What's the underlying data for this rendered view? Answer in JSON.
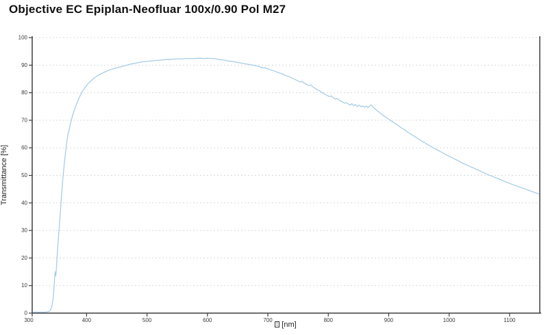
{
  "page": {
    "title": "Objective EC Epiplan-Neofluar 100x/0.90 Pol M27"
  },
  "colors": {
    "background": "#ffffff",
    "axis": "#3d3d3d",
    "grid": "#d9d9d9",
    "tick_label": "#3a3a3a",
    "curve": "#a6cde8",
    "title_text": "#111111"
  },
  "chart_data": {
    "type": "line",
    "title": "Objective EC Epiplan-Neofluar 100x/0.90 Pol M27",
    "ylabel": "Transmittance [%]",
    "xlabel": {
      "glyph": "missing-glyph-box",
      "unit": "[nm]"
    },
    "xlim": [
      310,
      1150
    ],
    "ylim": [
      0,
      100
    ],
    "x_ticks": [
      300,
      400,
      500,
      600,
      700,
      800,
      900,
      1000,
      1100
    ],
    "y_ticks": [
      0,
      10,
      20,
      30,
      40,
      50,
      60,
      70,
      80,
      90,
      100
    ],
    "grid": "horizontal-dashed",
    "legend": "none",
    "series": [
      {
        "name": "Transmittance",
        "color": "#a6cde8",
        "points": [
          [
            312,
            0.3
          ],
          [
            316,
            0.4
          ],
          [
            320,
            0.3
          ],
          [
            324,
            0.4
          ],
          [
            328,
            0.3
          ],
          [
            332,
            0.4
          ],
          [
            336,
            0.5
          ],
          [
            339,
            0.8
          ],
          [
            341,
            1.5
          ],
          [
            343,
            3
          ],
          [
            345,
            6
          ],
          [
            346,
            9
          ],
          [
            347,
            12
          ],
          [
            348,
            15
          ],
          [
            349,
            13.5
          ],
          [
            350,
            16
          ],
          [
            351,
            20
          ],
          [
            353,
            26
          ],
          [
            355,
            32
          ],
          [
            357,
            38
          ],
          [
            359,
            44
          ],
          [
            361,
            49.5
          ],
          [
            363,
            54
          ],
          [
            365,
            58
          ],
          [
            367,
            61.5
          ],
          [
            369,
            64.5
          ],
          [
            371,
            66.5
          ],
          [
            373,
            68.5
          ],
          [
            375,
            70.2
          ],
          [
            377,
            71.8
          ],
          [
            379,
            73.2
          ],
          [
            381,
            74.5
          ],
          [
            384,
            76.2
          ],
          [
            387,
            77.8
          ],
          [
            390,
            79.2
          ],
          [
            393,
            80.4
          ],
          [
            396,
            81.4
          ],
          [
            399,
            82.3
          ],
          [
            403,
            83.4
          ],
          [
            407,
            84.3
          ],
          [
            411,
            85
          ],
          [
            415,
            85.7
          ],
          [
            420,
            86.4
          ],
          [
            425,
            87
          ],
          [
            430,
            87.5
          ],
          [
            435,
            88
          ],
          [
            440,
            88.4
          ],
          [
            445,
            88.7
          ],
          [
            450,
            89
          ],
          [
            455,
            89.3
          ],
          [
            460,
            89.6
          ],
          [
            465,
            89.9
          ],
          [
            470,
            90.2
          ],
          [
            475,
            90.5
          ],
          [
            480,
            90.7
          ],
          [
            485,
            90.9
          ],
          [
            490,
            91.1
          ],
          [
            495,
            91.3
          ],
          [
            500,
            91.4
          ],
          [
            505,
            91.5
          ],
          [
            510,
            91.6
          ],
          [
            515,
            91.7
          ],
          [
            520,
            91.8
          ],
          [
            525,
            91.9
          ],
          [
            530,
            92
          ],
          [
            535,
            92.1
          ],
          [
            540,
            92.1
          ],
          [
            545,
            92.2
          ],
          [
            550,
            92.2
          ],
          [
            555,
            92.3
          ],
          [
            560,
            92.3
          ],
          [
            565,
            92.4
          ],
          [
            570,
            92.4
          ],
          [
            575,
            92.4
          ],
          [
            580,
            92.4
          ],
          [
            585,
            92.5
          ],
          [
            590,
            92.5
          ],
          [
            595,
            92.4
          ],
          [
            600,
            92.5
          ],
          [
            605,
            92.4
          ],
          [
            610,
            92.4
          ],
          [
            614,
            92.3
          ],
          [
            617,
            92.1
          ],
          [
            620,
            92
          ],
          [
            625,
            91.9
          ],
          [
            630,
            91.7
          ],
          [
            635,
            91.5
          ],
          [
            640,
            91.4
          ],
          [
            645,
            91.2
          ],
          [
            650,
            91
          ],
          [
            655,
            90.8
          ],
          [
            660,
            90.6
          ],
          [
            665,
            90.4
          ],
          [
            670,
            90.2
          ],
          [
            675,
            90
          ],
          [
            680,
            89.8
          ],
          [
            684,
            89.6
          ],
          [
            687,
            89.4
          ],
          [
            689,
            89
          ],
          [
            691,
            89.3
          ],
          [
            693,
            88.9
          ],
          [
            695,
            89.1
          ],
          [
            698,
            88.8
          ],
          [
            701,
            88.6
          ],
          [
            705,
            88.3
          ],
          [
            710,
            87.9
          ],
          [
            715,
            87.5
          ],
          [
            720,
            87.1
          ],
          [
            725,
            86.7
          ],
          [
            730,
            86.2
          ],
          [
            735,
            85.8
          ],
          [
            740,
            85.3
          ],
          [
            745,
            84.8
          ],
          [
            750,
            84.3
          ],
          [
            754,
            83.9
          ],
          [
            757,
            84.1
          ],
          [
            760,
            83.5
          ],
          [
            764,
            83
          ],
          [
            768,
            82.6
          ],
          [
            771,
            82.8
          ],
          [
            774,
            82.2
          ],
          [
            778,
            81.6
          ],
          [
            782,
            81.1
          ],
          [
            786,
            80.6
          ],
          [
            790,
            80
          ],
          [
            794,
            79.5
          ],
          [
            798,
            79
          ],
          [
            802,
            78.6
          ],
          [
            805,
            78.8
          ],
          [
            808,
            78.2
          ],
          [
            812,
            77.7
          ],
          [
            815,
            77.9
          ],
          [
            818,
            77.3
          ],
          [
            821,
            76.9
          ],
          [
            824,
            76.6
          ],
          [
            827,
            76.2
          ],
          [
            830,
            76.4
          ],
          [
            833,
            75.9
          ],
          [
            836,
            75.5
          ],
          [
            839,
            76
          ],
          [
            842,
            75.3
          ],
          [
            845,
            75.7
          ],
          [
            848,
            75
          ],
          [
            851,
            75.5
          ],
          [
            854,
            74.9
          ],
          [
            857,
            75.2
          ],
          [
            860,
            74.7
          ],
          [
            863,
            75.1
          ],
          [
            866,
            74.6
          ],
          [
            869,
            75.3
          ],
          [
            871,
            75.5
          ],
          [
            873,
            75
          ],
          [
            875,
            74.6
          ],
          [
            877,
            74.2
          ],
          [
            880,
            73.6
          ],
          [
            883,
            73.1
          ],
          [
            886,
            72.6
          ],
          [
            890,
            71.9
          ],
          [
            894,
            71.3
          ],
          [
            898,
            70.7
          ],
          [
            902,
            70.1
          ],
          [
            906,
            69.5
          ],
          [
            910,
            68.9
          ],
          [
            915,
            68.2
          ],
          [
            920,
            67.4
          ],
          [
            925,
            66.7
          ],
          [
            930,
            65.9
          ],
          [
            935,
            65.2
          ],
          [
            940,
            64.5
          ],
          [
            945,
            63.8
          ],
          [
            950,
            63.1
          ],
          [
            955,
            62.4
          ],
          [
            960,
            61.8
          ],
          [
            965,
            61.1
          ],
          [
            970,
            60.5
          ],
          [
            975,
            59.9
          ],
          [
            980,
            59.3
          ],
          [
            985,
            58.7
          ],
          [
            990,
            58.1
          ],
          [
            995,
            57.5
          ],
          [
            1000,
            56.9
          ],
          [
            1005,
            56.4
          ],
          [
            1010,
            55.8
          ],
          [
            1015,
            55.3
          ],
          [
            1020,
            54.7
          ],
          [
            1025,
            54.2
          ],
          [
            1030,
            53.7
          ],
          [
            1035,
            53.2
          ],
          [
            1040,
            52.7
          ],
          [
            1045,
            52.2
          ],
          [
            1050,
            51.7
          ],
          [
            1055,
            51.2
          ],
          [
            1060,
            50.7
          ],
          [
            1065,
            50.2
          ],
          [
            1070,
            49.8
          ],
          [
            1075,
            49.3
          ],
          [
            1080,
            48.9
          ],
          [
            1085,
            48.4
          ],
          [
            1090,
            48
          ],
          [
            1095,
            47.5
          ],
          [
            1100,
            47.1
          ],
          [
            1105,
            46.7
          ],
          [
            1110,
            46.3
          ],
          [
            1115,
            45.9
          ],
          [
            1120,
            45.5
          ],
          [
            1125,
            45.1
          ],
          [
            1130,
            44.7
          ],
          [
            1135,
            44.3
          ],
          [
            1140,
            43.9
          ],
          [
            1144,
            43.6
          ],
          [
            1148,
            43.3
          ]
        ]
      }
    ]
  }
}
